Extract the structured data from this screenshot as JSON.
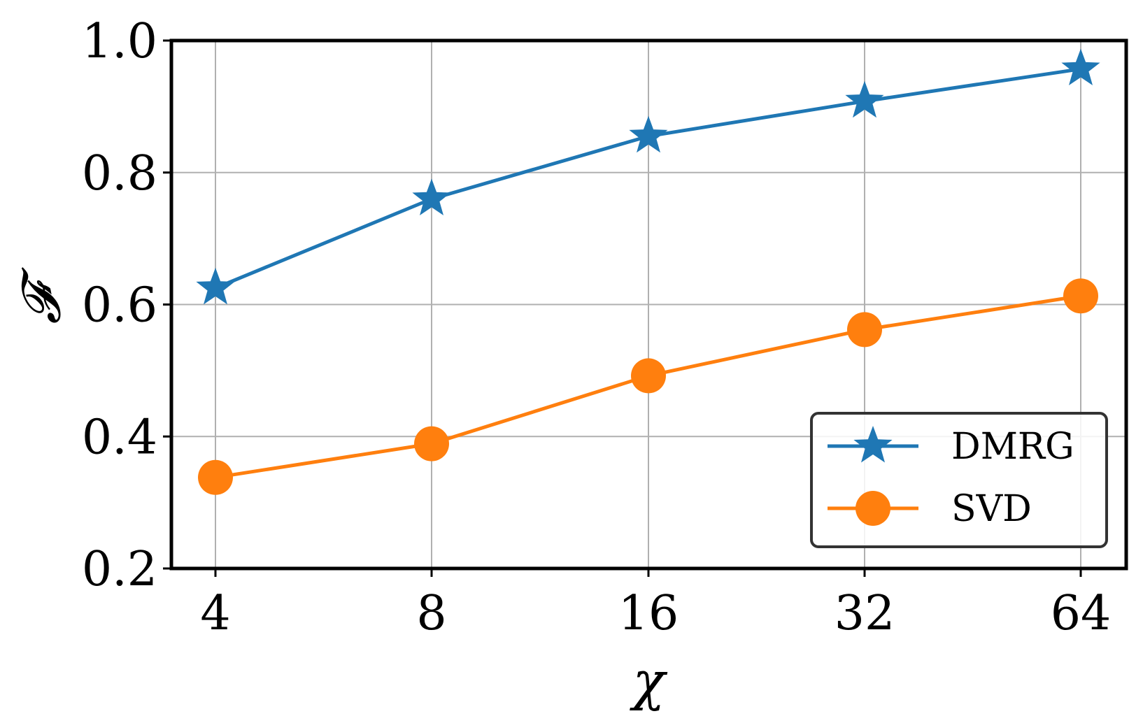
{
  "chart_data": {
    "type": "line",
    "xlabel": "χ",
    "ylabel": "𝓕",
    "x_scale": "log2",
    "x": [
      4,
      8,
      16,
      32,
      64
    ],
    "x_tick_labels": [
      "4",
      "8",
      "16",
      "32",
      "64"
    ],
    "y_ticks": [
      0.2,
      0.4,
      0.6,
      0.8,
      1.0
    ],
    "y_tick_labels": [
      "0.2",
      "0.4",
      "0.6",
      "0.8",
      "1.0"
    ],
    "ylim": [
      0.2,
      1.0
    ],
    "grid": true,
    "legend_position": "lower-right",
    "series": [
      {
        "name": "DMRG",
        "marker": "star",
        "color": "#1f77b4",
        "values": [
          0.625,
          0.76,
          0.855,
          0.908,
          0.957
        ]
      },
      {
        "name": "SVD",
        "marker": "circle",
        "color": "#ff7f0e",
        "values": [
          0.338,
          0.389,
          0.492,
          0.562,
          0.613
        ]
      }
    ]
  }
}
